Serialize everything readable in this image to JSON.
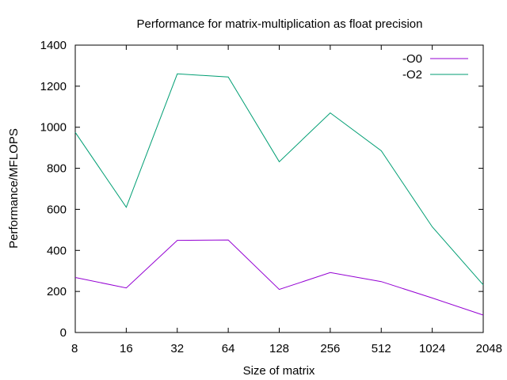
{
  "chart_data": {
    "type": "line",
    "title": "Performance for matrix-multiplication as float precision",
    "xlabel": "Size of matrix",
    "ylabel": "Performance/MFLOPS",
    "x_scale": "log2",
    "categories": [
      "8",
      "16",
      "32",
      "64",
      "128",
      "256",
      "512",
      "1024",
      "2048"
    ],
    "x": [
      8,
      16,
      32,
      64,
      128,
      256,
      512,
      1024,
      2048
    ],
    "ylim": [
      0,
      1400
    ],
    "yticks": [
      0,
      200,
      400,
      600,
      800,
      1000,
      1200,
      1400
    ],
    "grid": false,
    "legend_position": "top-right",
    "series": [
      {
        "name": "-O0",
        "color": "#9400d3",
        "values": [
          268,
          217,
          449,
          451,
          210,
          292,
          248,
          168,
          85
        ]
      },
      {
        "name": "-O2",
        "color": "#009e73",
        "values": [
          975,
          610,
          1260,
          1245,
          832,
          1070,
          885,
          515,
          232
        ]
      }
    ]
  }
}
